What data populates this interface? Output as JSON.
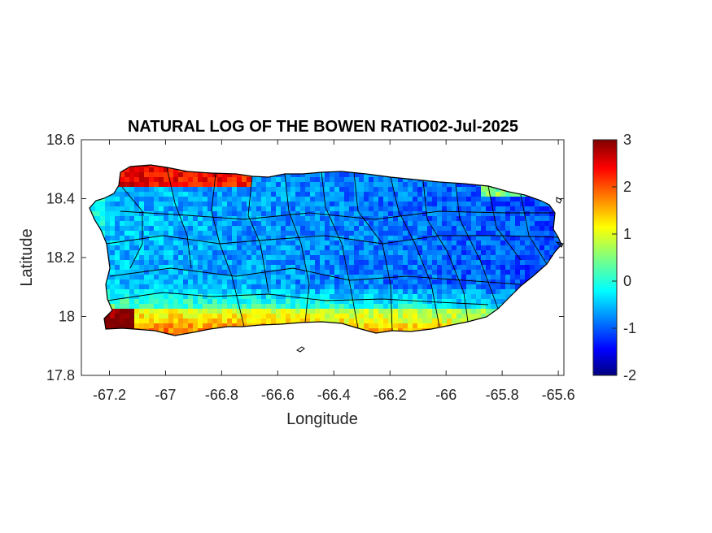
{
  "chart_data": {
    "type": "heatmap",
    "title": "NATURAL LOG OF THE BOWEN RATIO02-Jul-2025",
    "xlabel": "Longitude",
    "ylabel": "Latitude",
    "xlim": [
      -67.3,
      -65.58
    ],
    "ylim": [
      17.8,
      18.6
    ],
    "xticks": [
      -67.2,
      -67,
      -66.8,
      -66.6,
      -66.4,
      -66.2,
      -66,
      -65.8,
      -65.6
    ],
    "yticks": [
      18.6,
      18.4,
      18.2,
      18
    ],
    "colorbar": {
      "colormap": "jet",
      "clim": [
        -2,
        3
      ],
      "ticks": [
        3,
        2,
        1,
        0,
        -1,
        -2
      ]
    },
    "map_extent": {
      "west": -67.27,
      "east": -65.59,
      "south": 17.92,
      "north": 18.52
    },
    "field_regions": [
      {
        "region": "northwest coast",
        "value": 2.6
      },
      {
        "region": "south coast",
        "value": 1.2
      },
      {
        "region": "southwest corner",
        "value": 2.7
      },
      {
        "region": "interior",
        "value": -0.6
      },
      {
        "region": "east",
        "value": -1.0
      }
    ]
  },
  "colors": {
    "jet_stops": [
      "#00007f",
      "#0000ff",
      "#007fff",
      "#00ffff",
      "#7fff7f",
      "#ffff00",
      "#ff7f00",
      "#ff0000",
      "#7f0000"
    ],
    "border": "#000000"
  }
}
